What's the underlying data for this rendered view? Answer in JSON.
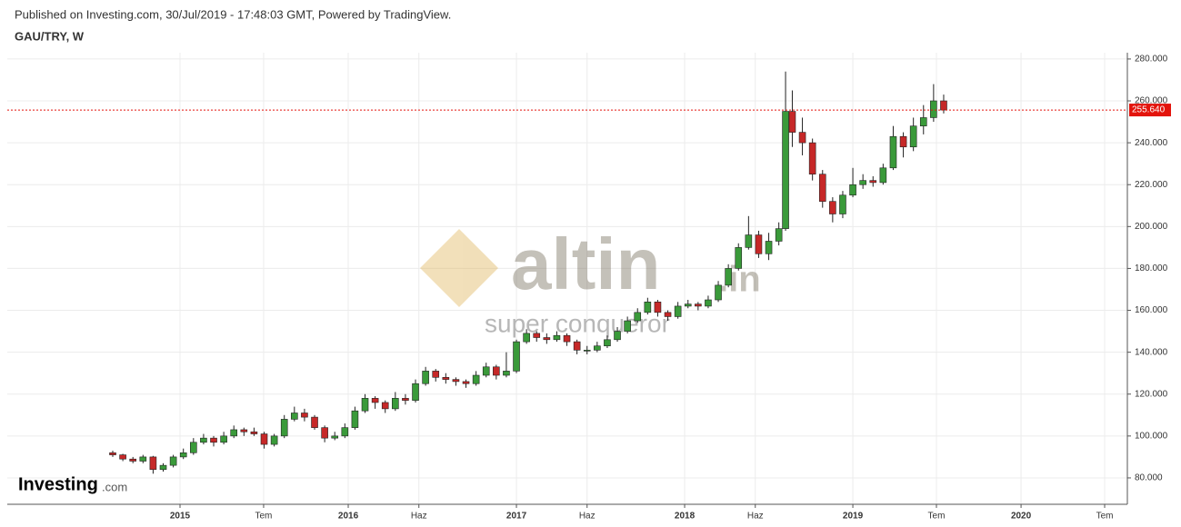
{
  "header": {
    "published": "Published on Investing.com, 30/Jul/2019 - 17:48:03 GMT, Powered by TradingView.",
    "symbol": "GAU/TRY, W"
  },
  "watermark": {
    "brand": "altin",
    "suffix": ".in",
    "tagline": "super conqueror",
    "logo": "Investing",
    "logo_suffix": ".com"
  },
  "chart_data": {
    "type": "candlestick",
    "x": [
      2014.6,
      2014.66,
      2014.72,
      2014.78,
      2014.84,
      2014.9,
      2014.96,
      2015.02,
      2015.08,
      2015.14,
      2015.2,
      2015.26,
      2015.32,
      2015.38,
      2015.44,
      2015.5,
      2015.56,
      2015.62,
      2015.68,
      2015.74,
      2015.8,
      2015.86,
      2015.92,
      2015.98,
      2016.04,
      2016.1,
      2016.16,
      2016.22,
      2016.28,
      2016.34,
      2016.4,
      2016.46,
      2016.52,
      2016.58,
      2016.64,
      2016.7,
      2016.76,
      2016.82,
      2016.88,
      2016.94,
      2017.0,
      2017.06,
      2017.12,
      2017.18,
      2017.24,
      2017.3,
      2017.36,
      2017.42,
      2017.48,
      2017.54,
      2017.6,
      2017.66,
      2017.72,
      2017.78,
      2017.84,
      2017.9,
      2017.96,
      2018.02,
      2018.08,
      2018.14,
      2018.2,
      2018.26,
      2018.32,
      2018.38,
      2018.44,
      2018.5,
      2018.56,
      2018.6,
      2018.64,
      2018.7,
      2018.76,
      2018.82,
      2018.88,
      2018.94,
      2019.0,
      2019.06,
      2019.12,
      2019.18,
      2019.24,
      2019.3,
      2019.36,
      2019.42,
      2019.48,
      2019.54
    ],
    "open": [
      92,
      91,
      89,
      88,
      90,
      84,
      86,
      90,
      92,
      97,
      99,
      97,
      100,
      103,
      102,
      101,
      96,
      100,
      108,
      111,
      109,
      104,
      99,
      100,
      104,
      112,
      118,
      116,
      113,
      118,
      117,
      125,
      131,
      128,
      127,
      126,
      125,
      129,
      133,
      129,
      131,
      145,
      149,
      147,
      146,
      148,
      145,
      141,
      141,
      143,
      146,
      150,
      155,
      159,
      164,
      159,
      157,
      162,
      163,
      162,
      165,
      172,
      180,
      190,
      196,
      187,
      193,
      199,
      255,
      245,
      240,
      225,
      212,
      206,
      215,
      220,
      222,
      221,
      228,
      243,
      238,
      248,
      252,
      260
    ],
    "high": [
      93,
      91.5,
      90,
      91,
      90.5,
      87,
      91,
      94,
      99,
      101,
      100,
      102,
      105,
      104,
      104,
      102,
      101,
      110,
      114,
      113,
      110,
      105,
      102,
      106,
      114,
      120,
      119,
      117,
      121,
      120,
      127,
      133,
      132,
      130,
      128,
      127,
      131,
      135,
      134,
      140,
      146,
      151,
      150,
      149,
      150,
      149,
      146,
      143,
      145,
      148,
      152,
      157,
      161,
      166,
      165,
      160,
      164,
      165,
      164,
      167,
      174,
      182,
      192,
      205,
      198,
      197,
      202,
      274,
      265,
      252,
      242,
      227,
      214,
      217,
      228,
      225,
      224,
      230,
      248,
      245,
      252,
      258,
      268,
      263
    ],
    "low": [
      90,
      88,
      87,
      87,
      82,
      83,
      85,
      89,
      91,
      96,
      95,
      96,
      99,
      100,
      100,
      94,
      95,
      99,
      107,
      107,
      103,
      97,
      98,
      99,
      103,
      111,
      113,
      111,
      112,
      115,
      116,
      124,
      126,
      125,
      124,
      123,
      124,
      128,
      127,
      128,
      130,
      144,
      145,
      144,
      145,
      143,
      139,
      139,
      140,
      142,
      145,
      149,
      154,
      158,
      157,
      155,
      156,
      161,
      160,
      161,
      164,
      171,
      179,
      189,
      185,
      184,
      191,
      198,
      238,
      234,
      222,
      209,
      202,
      204,
      214,
      218,
      219,
      220,
      227,
      233,
      236,
      244,
      250,
      254
    ],
    "close": [
      91,
      89,
      88,
      90,
      84,
      86,
      90,
      92,
      97,
      99,
      97,
      100,
      103,
      102,
      101,
      96,
      100,
      108,
      111,
      109,
      104,
      99,
      100,
      104,
      112,
      118,
      116,
      113,
      118,
      117,
      125,
      131,
      128,
      127,
      126,
      125,
      129,
      133,
      129,
      131,
      145,
      149,
      147,
      146,
      148,
      145,
      141,
      141,
      143,
      146,
      150,
      155,
      159,
      164,
      159,
      157,
      162,
      163,
      162,
      165,
      172,
      180,
      190,
      196,
      187,
      193,
      199,
      255,
      245,
      240,
      225,
      212,
      206,
      215,
      220,
      222,
      221,
      228,
      243,
      238,
      248,
      252,
      260,
      255.64
    ],
    "up_color": "#3a9a3a",
    "down_color": "#c62828",
    "last_price": {
      "value": 255.64,
      "label": "255.640"
    },
    "last_color": "#e3140c",
    "xlim": [
      2013.973,
      2020.632
    ],
    "xticks": [
      {
        "value": 2015,
        "label": "2015"
      },
      {
        "value": 2015.497,
        "label": "Tem"
      },
      {
        "value": 2016,
        "label": "2016"
      },
      {
        "value": 2016.42,
        "label": "Haz"
      },
      {
        "value": 2017,
        "label": "2017"
      },
      {
        "value": 2017.42,
        "label": "Haz"
      },
      {
        "value": 2018,
        "label": "2018"
      },
      {
        "value": 2018.42,
        "label": "Haz"
      },
      {
        "value": 2019,
        "label": "2019"
      },
      {
        "value": 2019.497,
        "label": "Tem"
      },
      {
        "value": 2020,
        "label": "2020"
      },
      {
        "value": 2020.497,
        "label": "Tem"
      }
    ],
    "ylim": [
      67.4,
      283
    ],
    "yticks": [
      {
        "value": 80,
        "label": "80.000"
      },
      {
        "value": 100,
        "label": "100.000"
      },
      {
        "value": 120,
        "label": "120.000"
      },
      {
        "value": 140,
        "label": "140.000"
      },
      {
        "value": 160,
        "label": "160.000"
      },
      {
        "value": 180,
        "label": "180.000"
      },
      {
        "value": 200,
        "label": "200.000"
      },
      {
        "value": 220,
        "label": "220.000"
      },
      {
        "value": 240,
        "label": "240.000"
      },
      {
        "value": 260,
        "label": "260.000"
      },
      {
        "value": 280,
        "label": "280.000"
      }
    ],
    "grid": true
  }
}
